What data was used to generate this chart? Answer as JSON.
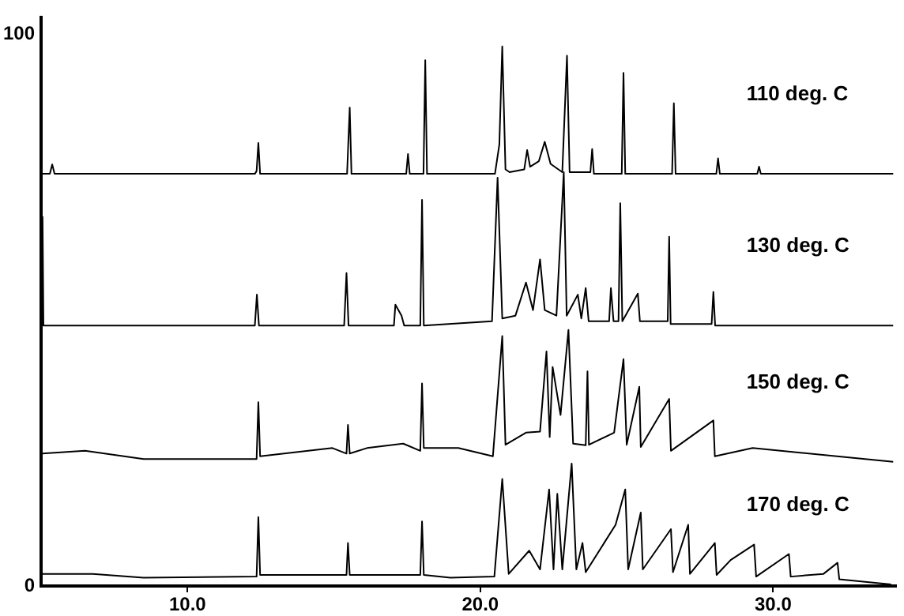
{
  "chart_data": {
    "type": "line",
    "xlim": [
      5,
      34.2
    ],
    "ylim": [
      0,
      103
    ],
    "xticks": [
      {
        "value": 10,
        "label": "10.0"
      },
      {
        "value": 20,
        "label": "20.0"
      },
      {
        "value": 30,
        "label": "30.0"
      }
    ],
    "yticks": [
      0,
      100
    ],
    "grid": false,
    "legend": false,
    "series": [
      {
        "name": "110 deg. C",
        "color": "#000000",
        "x": [
          5.05,
          5.3,
          5.38,
          5.46,
          12.3,
          12.36,
          12.42,
          12.48,
          15.45,
          15.54,
          15.6,
          17.47,
          17.53,
          17.59,
          18.06,
          18.12,
          18.18,
          20.5,
          20.65,
          20.75,
          20.86,
          21.0,
          21.5,
          21.6,
          21.7,
          22.0,
          22.2,
          22.4,
          22.8,
          22.96,
          23.05,
          23.76,
          23.82,
          23.88,
          24.83,
          24.89,
          24.95,
          26.55,
          26.61,
          26.67,
          28.06,
          28.12,
          28.18,
          29.46,
          29.52,
          29.58,
          34.1
        ],
        "values": [
          74.7,
          74.7,
          76.4,
          74.7,
          74.7,
          75.2,
          80.3,
          74.7,
          74.7,
          86.7,
          74.7,
          74.7,
          78.3,
          74.7,
          74.7,
          95.3,
          74.7,
          74.7,
          80,
          97.8,
          75.5,
          75,
          75.5,
          79,
          76,
          77,
          80.5,
          76.5,
          75,
          96.1,
          75,
          75,
          79.2,
          74.7,
          74.7,
          93,
          74.7,
          74.7,
          87.5,
          74.7,
          74.7,
          77.5,
          74.7,
          74.7,
          76,
          74.7,
          74.7
        ]
      },
      {
        "name": "130 deg. C",
        "color": "#000000",
        "x": [
          5.05,
          5.08,
          5.12,
          12.3,
          12.37,
          12.44,
          15.35,
          15.43,
          15.5,
          17.05,
          17.1,
          17.31,
          17.4,
          17.95,
          18.01,
          18.07,
          20.4,
          20.59,
          20.75,
          21.2,
          21.56,
          21.8,
          22.04,
          22.2,
          22.6,
          22.85,
          22.95,
          23.33,
          23.45,
          23.6,
          23.7,
          24.4,
          24.46,
          24.55,
          24.72,
          24.78,
          24.85,
          25.38,
          25.45,
          26.4,
          26.45,
          26.5,
          27.9,
          27.96,
          28.02,
          34.1
        ],
        "values": [
          67,
          47.2,
          47.2,
          47.2,
          52.8,
          47.2,
          47.2,
          56.7,
          47.2,
          47.2,
          51,
          49,
          47.2,
          47.2,
          70,
          47.2,
          48,
          74,
          48.5,
          49,
          55,
          50,
          59.2,
          50,
          49,
          75,
          49,
          52.8,
          48.5,
          54,
          48,
          48,
          54,
          48,
          48,
          69.4,
          48,
          53,
          48,
          48,
          63.3,
          47.5,
          47.5,
          53.3,
          47.2,
          47.2
        ]
      },
      {
        "name": "150 deg. C",
        "color": "#000000",
        "x": [
          5.05,
          6.5,
          8.5,
          12.36,
          12.42,
          12.48,
          14.95,
          15.43,
          15.48,
          15.54,
          16.13,
          17.37,
          17.95,
          18.01,
          18.07,
          19.25,
          20.43,
          20.75,
          20.86,
          21.56,
          22.04,
          22.26,
          22.37,
          22.47,
          22.74,
          23.01,
          23.17,
          23.6,
          23.66,
          23.71,
          24.57,
          24.89,
          25.0,
          25.43,
          25.48,
          26.45,
          26.51,
          27.96,
          28.01,
          29.3,
          34.1
        ],
        "values": [
          24,
          24.5,
          23,
          23,
          33.3,
          23.5,
          25,
          24,
          29.2,
          24,
          25,
          25.8,
          24.5,
          36.7,
          25,
          25,
          23.5,
          45.3,
          25.6,
          27.8,
          28,
          42.5,
          27,
          39.7,
          31,
          46.4,
          25.8,
          25.5,
          38.9,
          25.6,
          27.8,
          41.1,
          25.6,
          36.1,
          25.2,
          33.9,
          24.5,
          30,
          23.5,
          25,
          22.5
        ]
      },
      {
        "name": "170 deg. C",
        "color": "#000000",
        "x": [
          5.05,
          6.77,
          8.5,
          12.36,
          12.42,
          12.48,
          15.43,
          15.48,
          15.54,
          17.95,
          18.01,
          18.07,
          18.98,
          20.48,
          20.75,
          20.97,
          21.67,
          22.04,
          22.35,
          22.5,
          22.63,
          22.8,
          23.12,
          23.28,
          23.49,
          23.6,
          24.62,
          24.95,
          25.05,
          25.48,
          25.55,
          26.51,
          26.58,
          27.1,
          27.16,
          28.01,
          28.07,
          28.55,
          29.35,
          29.42,
          30.54,
          30.6,
          31.72,
          32.2,
          32.26,
          34.03
        ],
        "values": [
          2.2,
          2.2,
          1.5,
          1.7,
          12.5,
          2,
          2,
          7.8,
          2,
          2,
          11.7,
          2,
          1.5,
          1.7,
          19.4,
          2.2,
          6.4,
          3,
          17.5,
          3,
          16.7,
          3,
          22.2,
          3,
          7.8,
          2.5,
          11.1,
          17.5,
          3,
          13.3,
          3,
          10.3,
          2.5,
          11.1,
          2.2,
          7.8,
          2,
          4.7,
          7.5,
          1.7,
          5.8,
          1.7,
          2.2,
          4.2,
          1.2,
          0.3
        ]
      }
    ]
  }
}
